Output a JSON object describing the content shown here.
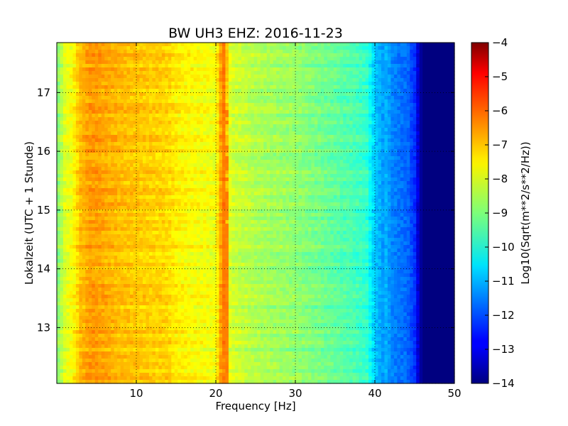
{
  "chart_data": {
    "type": "heatmap",
    "title": "BW UH3 EHZ: 2016-11-23",
    "xlabel": "Frequency [Hz]",
    "ylabel": "Lokalzeit (UTC + 1 Stunde)",
    "xlim": [
      0,
      50
    ],
    "ylim": [
      17.85,
      12.05
    ],
    "x_ticks": [
      10,
      20,
      30,
      40,
      50
    ],
    "y_ticks": [
      13,
      14,
      15,
      16,
      17
    ],
    "grid": true,
    "colormap": "jet",
    "colorbar": {
      "label": "Log10(Sqrt(m**2/s**2/Hz))",
      "range": [
        -14,
        -4
      ],
      "ticks": [
        -4,
        -5,
        -6,
        -7,
        -8,
        -9,
        -10,
        -11,
        -12,
        -13,
        -14
      ]
    },
    "spectrum_profile": {
      "frequency": [
        0,
        0.5,
        1,
        2,
        3,
        4,
        5,
        6,
        8,
        10,
        12,
        14,
        15,
        16,
        18,
        20,
        20.8,
        21.2,
        21.6,
        22,
        24,
        26,
        28,
        30,
        32,
        34,
        36,
        38,
        39,
        39.5,
        40,
        41,
        41.5,
        42,
        43,
        44,
        45,
        45.5,
        46,
        50
      ],
      "log_amplitude": [
        -9,
        -8.6,
        -8.1,
        -7.8,
        -7.1,
        -6.8,
        -6.8,
        -6.9,
        -7.1,
        -7.2,
        -7.3,
        -7.35,
        -7.6,
        -7.7,
        -7.8,
        -7.9,
        -6.5,
        -6.6,
        -7.9,
        -8.2,
        -8.4,
        -8.6,
        -8.7,
        -8.8,
        -9.0,
        -9.2,
        -9.4,
        -9.6,
        -9.8,
        -10.3,
        -10.8,
        -11.2,
        -11.0,
        -11.4,
        -11.6,
        -11.7,
        -12.3,
        -13.3,
        -14.0,
        -14.0
      ]
    },
    "tonal_line": {
      "frequency_start": 21.0,
      "frequency_end": 21.3,
      "log_amplitude": -6.5
    }
  }
}
